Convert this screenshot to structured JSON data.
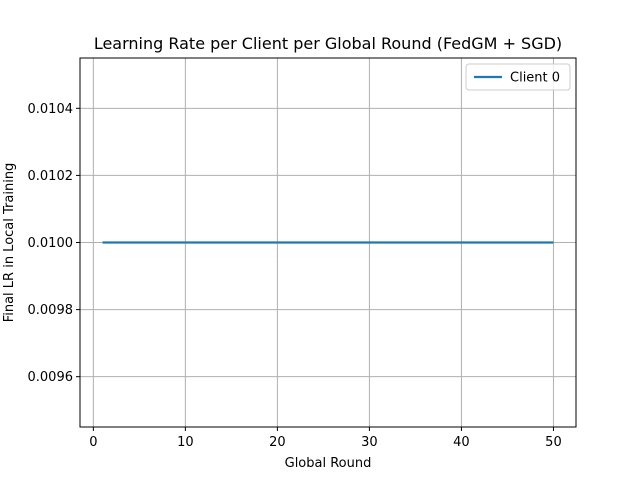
{
  "chart_data": {
    "type": "line",
    "title": "Learning Rate per Client per Global Round (FedGM + SGD)",
    "xlabel": "Global Round",
    "ylabel": "Final LR in Local Training",
    "xlim": [
      -1.45,
      52.45
    ],
    "ylim": [
      0.00945,
      0.01055
    ],
    "xticks": [
      0,
      10,
      20,
      30,
      40,
      50
    ],
    "xtick_labels": [
      "0",
      "10",
      "20",
      "30",
      "40",
      "50"
    ],
    "yticks": [
      0.0096,
      0.0098,
      0.01,
      0.0102,
      0.0104
    ],
    "ytick_labels": [
      "0.0096",
      "0.0098",
      "0.0100",
      "0.0102",
      "0.0104"
    ],
    "grid": true,
    "legend_position": "top-right",
    "series": [
      {
        "name": "Client 0",
        "color": "#1f77b4",
        "x": [
          1,
          50
        ],
        "y": [
          0.01,
          0.01
        ]
      }
    ]
  }
}
